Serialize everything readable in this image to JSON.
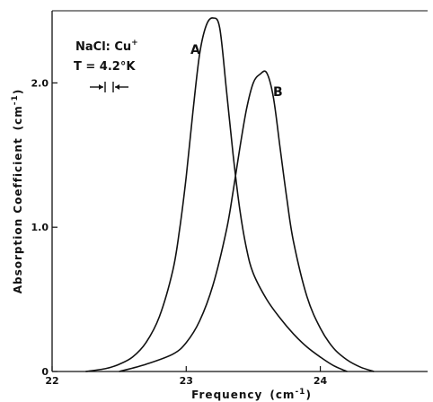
{
  "chart_data": {
    "type": "line",
    "xlabel": "Frequency",
    "xlabel_unit": "(cm",
    "xlabel_unit_exp": "-1",
    "xlabel_unit_close": ")",
    "ylabel": "Absorption Coefficient",
    "ylabel_unit": "(cm",
    "ylabel_unit_exp": "-1",
    "ylabel_unit_close": ")",
    "xlim": [
      22,
      24.8
    ],
    "ylim": [
      0,
      2.5
    ],
    "xticks": [
      "22",
      "23",
      "24"
    ],
    "xtick_values": [
      22,
      23,
      24
    ],
    "yticks": [
      "0",
      "1.0",
      "2.0"
    ],
    "ytick_values": [
      0,
      1.0,
      2.0
    ],
    "annotations": {
      "sample": "NaCl: Cu",
      "sample_sup": "+",
      "temperature": "T = 4.2°K"
    },
    "series": [
      {
        "name": "A",
        "x": [
          22.25,
          22.4,
          22.5,
          22.6,
          22.7,
          22.8,
          22.9,
          22.95,
          23.0,
          23.05,
          23.1,
          23.15,
          23.2,
          23.25,
          23.3,
          23.35,
          23.4,
          23.45,
          23.5,
          23.6,
          23.7,
          23.8,
          23.9,
          24.0,
          24.1,
          24.2
        ],
        "y": [
          0.0,
          0.02,
          0.05,
          0.1,
          0.2,
          0.38,
          0.7,
          0.98,
          1.35,
          1.8,
          2.2,
          2.4,
          2.45,
          2.38,
          1.95,
          1.5,
          1.12,
          0.85,
          0.68,
          0.5,
          0.37,
          0.26,
          0.17,
          0.1,
          0.04,
          0.0
        ]
      },
      {
        "name": "B",
        "x": [
          22.5,
          22.7,
          22.9,
          23.0,
          23.1,
          23.2,
          23.3,
          23.35,
          23.4,
          23.45,
          23.5,
          23.55,
          23.6,
          23.65,
          23.7,
          23.75,
          23.8,
          23.9,
          24.0,
          24.1,
          24.2,
          24.3,
          24.4
        ],
        "y": [
          0.0,
          0.05,
          0.12,
          0.2,
          0.35,
          0.6,
          0.98,
          1.25,
          1.55,
          1.82,
          2.0,
          2.06,
          2.07,
          1.9,
          1.55,
          1.2,
          0.9,
          0.52,
          0.3,
          0.16,
          0.08,
          0.03,
          0.0
        ]
      }
    ]
  }
}
